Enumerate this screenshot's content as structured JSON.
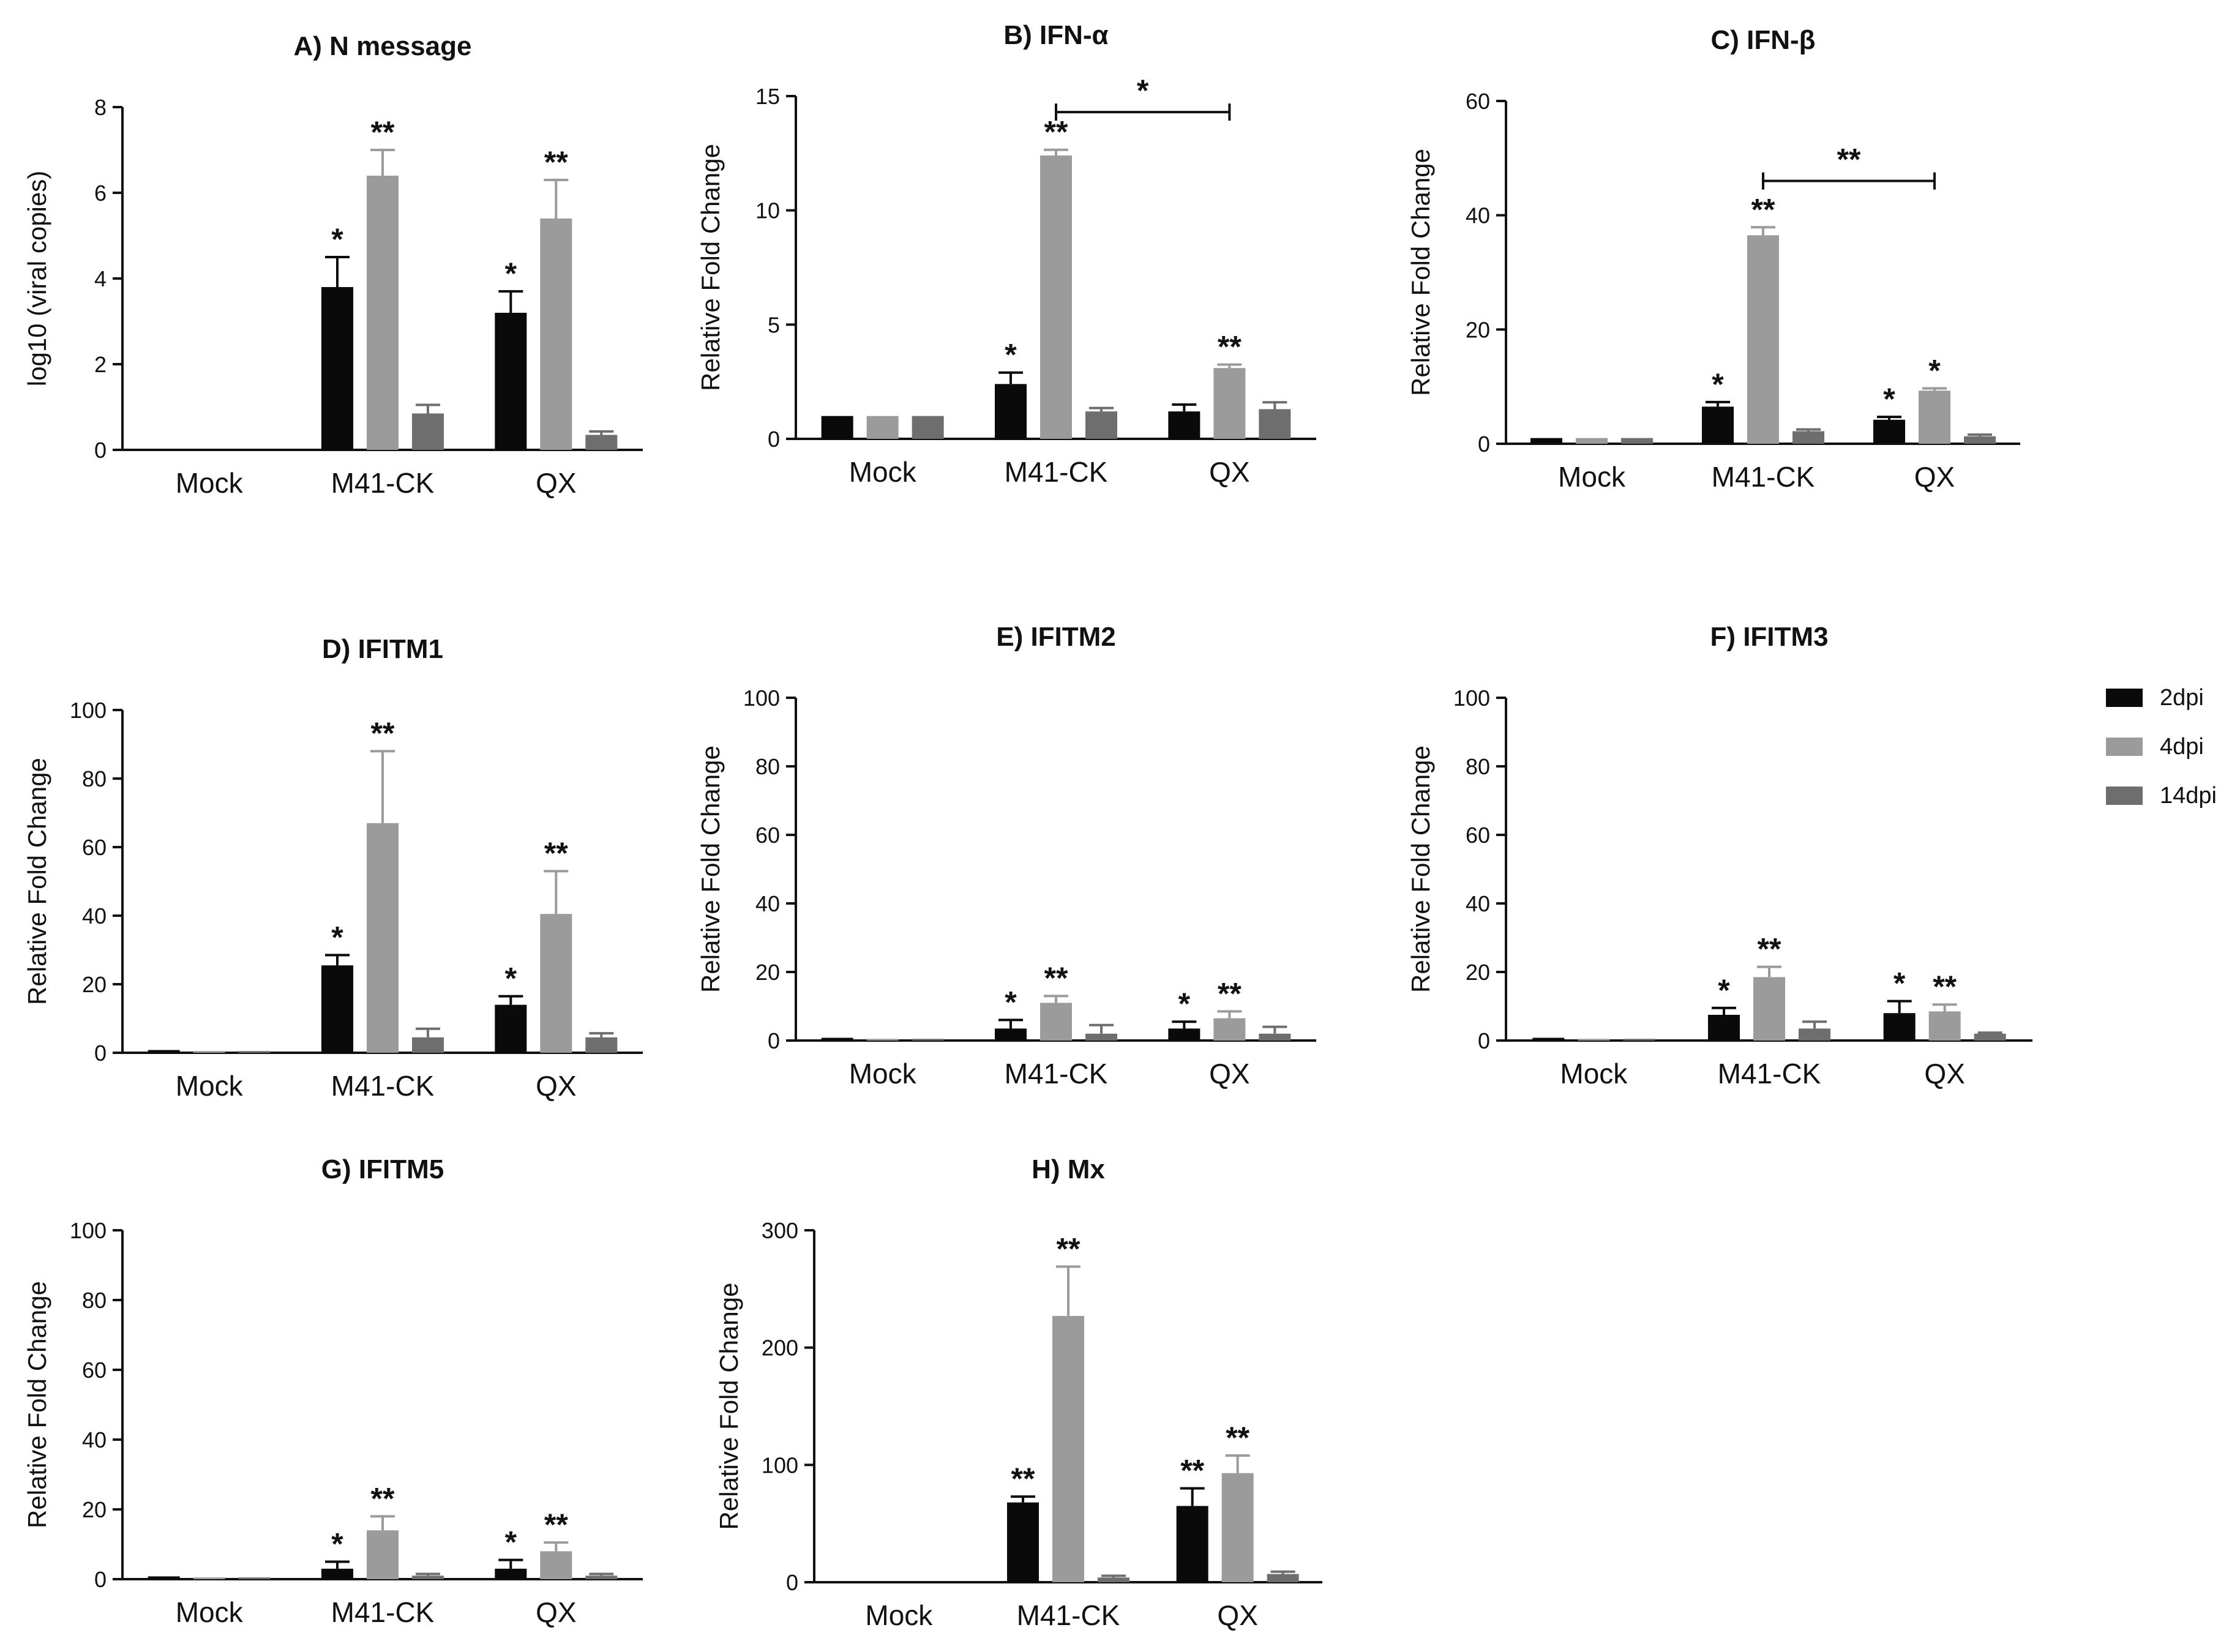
{
  "colors": {
    "2dpi": "#0a0a0a",
    "4dpi": "#9b9b9b",
    "14dpi": "#6e6e6e"
  },
  "legend": {
    "items": [
      "2dpi",
      "4dpi",
      "14dpi"
    ]
  },
  "chart_data": [
    {
      "id": "A",
      "type": "bar",
      "title": "A) N message",
      "ylabel": "log10 (viral copies)",
      "xlabel": "",
      "ylim": [
        0,
        8
      ],
      "yticks": [
        0,
        2,
        4,
        6,
        8
      ],
      "categories": [
        "Mock",
        "M41-CK",
        "QX"
      ],
      "series": [
        {
          "name": "2dpi",
          "values": [
            0,
            3.8,
            3.2
          ],
          "errors": [
            0,
            0.7,
            0.5
          ],
          "sig": [
            "",
            "*",
            "*"
          ]
        },
        {
          "name": "4dpi",
          "values": [
            0,
            6.4,
            5.4
          ],
          "errors": [
            0,
            0.6,
            0.9
          ],
          "sig": [
            "",
            "**",
            "**"
          ]
        },
        {
          "name": "14dpi",
          "values": [
            0,
            0.85,
            0.35
          ],
          "errors": [
            0,
            0.2,
            0.08
          ],
          "sig": [
            "",
            "",
            ""
          ]
        }
      ],
      "brackets": []
    },
    {
      "id": "B",
      "type": "bar",
      "title": "B) IFN-α",
      "ylabel": "Relative Fold Change",
      "xlabel": "",
      "ylim": [
        0,
        15
      ],
      "yticks": [
        0,
        5,
        10,
        15
      ],
      "categories": [
        "Mock",
        "M41-CK",
        "QX"
      ],
      "series": [
        {
          "name": "2dpi",
          "values": [
            1,
            2.4,
            1.2
          ],
          "errors": [
            0,
            0.5,
            0.3
          ],
          "sig": [
            "",
            "*",
            ""
          ]
        },
        {
          "name": "4dpi",
          "values": [
            1,
            12.4,
            3.1
          ],
          "errors": [
            0,
            0.25,
            0.15
          ],
          "sig": [
            "",
            "**",
            "**"
          ]
        },
        {
          "name": "14dpi",
          "values": [
            1,
            1.2,
            1.3
          ],
          "errors": [
            0,
            0.15,
            0.3
          ],
          "sig": [
            "",
            "",
            ""
          ]
        }
      ],
      "brackets": [
        {
          "from": "M41-CK",
          "to": "QX",
          "y": 14.3,
          "label": "*"
        }
      ]
    },
    {
      "id": "C",
      "type": "bar",
      "title": "C) IFN-β",
      "ylabel": "Relative  Fold Change",
      "xlabel": "",
      "ylim": [
        0,
        60
      ],
      "yticks": [
        0,
        20,
        40,
        60
      ],
      "categories": [
        "Mock",
        "M41-CK",
        "QX"
      ],
      "series": [
        {
          "name": "2dpi",
          "values": [
            1,
            6.5,
            4.2
          ],
          "errors": [
            0,
            0.8,
            0.5
          ],
          "sig": [
            "",
            "*",
            "*"
          ]
        },
        {
          "name": "4dpi",
          "values": [
            1,
            36.5,
            9.3
          ],
          "errors": [
            0,
            1.4,
            0.4
          ],
          "sig": [
            "",
            "**",
            "*"
          ]
        },
        {
          "name": "14dpi",
          "values": [
            1,
            2.2,
            1.3
          ],
          "errors": [
            0,
            0.3,
            0.3
          ],
          "sig": [
            "",
            "",
            ""
          ]
        }
      ],
      "brackets": [
        {
          "from": "M41-CK",
          "to": "QX",
          "y": 46,
          "label": "**"
        }
      ]
    },
    {
      "id": "D",
      "type": "bar",
      "title": "D) IFITM1",
      "ylabel": "Relative Fold Change",
      "xlabel": "",
      "ylim": [
        0,
        100
      ],
      "yticks": [
        0,
        20,
        40,
        60,
        80,
        100
      ],
      "categories": [
        "Mock",
        "M41-CK",
        "QX"
      ],
      "series": [
        {
          "name": "2dpi",
          "values": [
            0.8,
            25.5,
            14
          ],
          "errors": [
            0,
            3,
            2.5
          ],
          "sig": [
            "",
            "*",
            "*"
          ]
        },
        {
          "name": "4dpi",
          "values": [
            0.5,
            67,
            40.5
          ],
          "errors": [
            0,
            21,
            12.5
          ],
          "sig": [
            "",
            "**",
            "**"
          ]
        },
        {
          "name": "14dpi",
          "values": [
            0.5,
            4.5,
            4.5
          ],
          "errors": [
            0,
            2.5,
            1.2
          ],
          "sig": [
            "",
            "",
            ""
          ]
        }
      ],
      "brackets": []
    },
    {
      "id": "E",
      "type": "bar",
      "title": "E) IFITM2",
      "ylabel": "Relative Fold Change",
      "xlabel": "",
      "ylim": [
        0,
        100
      ],
      "yticks": [
        0,
        20,
        40,
        60,
        80,
        100
      ],
      "categories": [
        "Mock",
        "M41-CK",
        "QX"
      ],
      "series": [
        {
          "name": "2dpi",
          "values": [
            0.8,
            3.5,
            3.5
          ],
          "errors": [
            0,
            2.5,
            2
          ],
          "sig": [
            "",
            "*",
            "*"
          ]
        },
        {
          "name": "4dpi",
          "values": [
            0.5,
            11,
            6.5
          ],
          "errors": [
            0,
            2,
            2
          ],
          "sig": [
            "",
            "**",
            "**"
          ]
        },
        {
          "name": "14dpi",
          "values": [
            0.5,
            2,
            2
          ],
          "errors": [
            0,
            2.5,
            2
          ],
          "sig": [
            "",
            "",
            ""
          ]
        }
      ],
      "brackets": []
    },
    {
      "id": "F",
      "type": "bar",
      "title": "F) IFITM3",
      "ylabel": "Relative Fold Change",
      "xlabel": "",
      "ylim": [
        0,
        100
      ],
      "yticks": [
        0,
        20,
        40,
        60,
        80,
        100
      ],
      "categories": [
        "Mock",
        "M41-CK",
        "QX"
      ],
      "series": [
        {
          "name": "2dpi",
          "values": [
            0.8,
            7.5,
            8
          ],
          "errors": [
            0,
            2,
            3.5
          ],
          "sig": [
            "",
            "*",
            "*"
          ]
        },
        {
          "name": "4dpi",
          "values": [
            0.5,
            18.5,
            8.5
          ],
          "errors": [
            0,
            3,
            2
          ],
          "sig": [
            "",
            "**",
            "**"
          ]
        },
        {
          "name": "14dpi",
          "values": [
            0.5,
            3.5,
            2
          ],
          "errors": [
            0,
            2,
            0.3
          ],
          "sig": [
            "",
            "",
            ""
          ]
        }
      ],
      "brackets": []
    },
    {
      "id": "G",
      "type": "bar",
      "title": "G) IFITM5",
      "ylabel": "Relative Fold Change",
      "xlabel": "",
      "ylim": [
        0,
        100
      ],
      "yticks": [
        0,
        20,
        40,
        60,
        80,
        100
      ],
      "categories": [
        "Mock",
        "M41-CK",
        "QX"
      ],
      "series": [
        {
          "name": "2dpi",
          "values": [
            0.8,
            3,
            3
          ],
          "errors": [
            0,
            2,
            2.5
          ],
          "sig": [
            "",
            "*",
            "*"
          ]
        },
        {
          "name": "4dpi",
          "values": [
            0.5,
            14,
            8
          ],
          "errors": [
            0,
            4,
            2.5
          ],
          "sig": [
            "",
            "**",
            "**"
          ]
        },
        {
          "name": "14dpi",
          "values": [
            0.5,
            1,
            1
          ],
          "errors": [
            0,
            0.5,
            0.5
          ],
          "sig": [
            "",
            "",
            ""
          ]
        }
      ],
      "brackets": []
    },
    {
      "id": "H",
      "type": "bar",
      "title": "H) Mx",
      "ylabel": "Relative Fold Change",
      "xlabel": "",
      "ylim": [
        0,
        300
      ],
      "yticks": [
        0,
        100,
        200,
        300
      ],
      "categories": [
        "Mock",
        "M41-CK",
        "QX"
      ],
      "series": [
        {
          "name": "2dpi",
          "values": [
            0,
            68,
            65
          ],
          "errors": [
            0,
            5,
            15
          ],
          "sig": [
            "",
            "**",
            "**"
          ]
        },
        {
          "name": "4dpi",
          "values": [
            0,
            227,
            93
          ],
          "errors": [
            0,
            42,
            15
          ],
          "sig": [
            "",
            "**",
            "**"
          ]
        },
        {
          "name": "14dpi",
          "values": [
            0,
            4,
            7
          ],
          "errors": [
            0,
            1.5,
            2
          ],
          "sig": [
            "",
            "",
            ""
          ]
        }
      ],
      "brackets": []
    }
  ]
}
